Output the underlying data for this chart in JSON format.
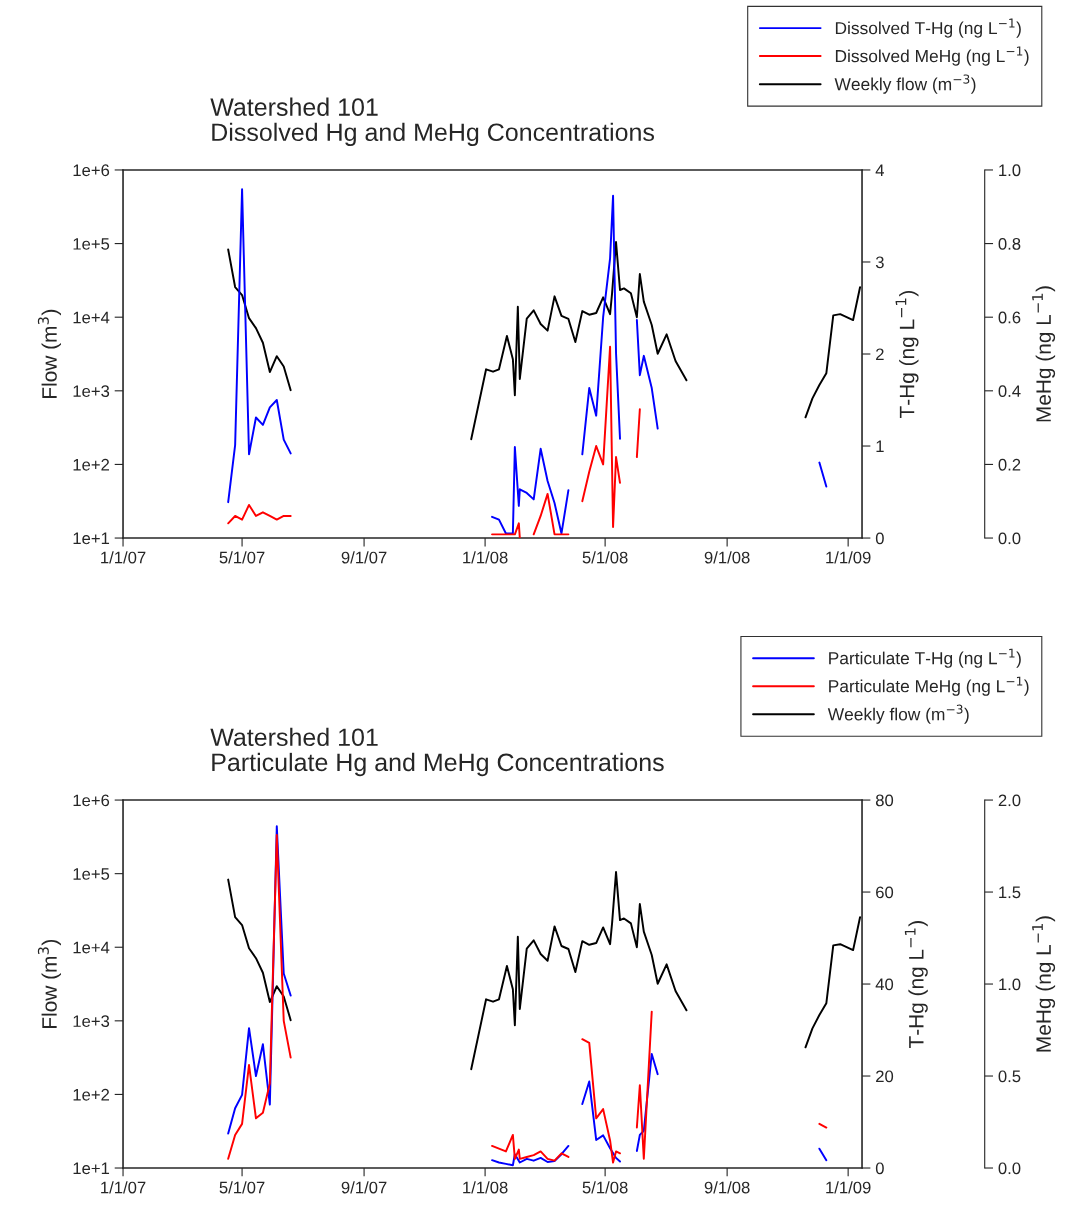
{
  "chart_data": [
    {
      "type": "line",
      "title": "Watershed 101\nDissolved Hg and MeHg Concentrations",
      "ylabel": "Flow (m$^{3}$)",
      "y2label": "T-Hg (ng L$^{−1}$)",
      "y3label": "MeHg (ng L$^{−1}$)",
      "log": "y",
      "grid": false,
      "legend": "top right",
      "marker": "none",
      "line_style": "solid",
      "xlim": [
        "2007-01-01",
        "2009-01-15"
      ],
      "xticks": [
        {
          "value": "2007-01-01",
          "label": "1/1/07"
        },
        {
          "value": "2007-05-01",
          "label": "5/1/07"
        },
        {
          "value": "2007-09-01",
          "label": "9/1/07"
        },
        {
          "value": "2008-01-01",
          "label": "1/1/08"
        },
        {
          "value": "2008-05-01",
          "label": "5/1/08"
        },
        {
          "value": "2008-09-01",
          "label": "9/1/08"
        },
        {
          "value": "2009-01-01",
          "label": "1/1/09"
        }
      ],
      "ylim": [
        10,
        1000000
      ],
      "yticks": [
        {
          "value": 10,
          "label": "1e+1"
        },
        {
          "value": 100,
          "label": "1e+2"
        },
        {
          "value": 1000,
          "label": "1e+3"
        },
        {
          "value": 10000,
          "label": "1e+4"
        },
        {
          "value": 100000,
          "label": "1e+5"
        },
        {
          "value": 1000000,
          "label": "1e+6"
        }
      ],
      "y2lim": [
        0,
        4
      ],
      "y2ticks": [
        0,
        1,
        2,
        3,
        4
      ],
      "y3lim": [
        0,
        1.0
      ],
      "y3ticks": [
        {
          "value": 0,
          "label": "0.0"
        },
        {
          "value": 0.2,
          "label": "0.2"
        },
        {
          "value": 0.4,
          "label": "0.4"
        },
        {
          "value": 0.6,
          "label": "0.6"
        },
        {
          "value": 0.8,
          "label": "0.8"
        },
        {
          "value": 1.0,
          "label": "1.0"
        }
      ],
      "series": [
        {
          "name": "Dissolved T-Hg (ng L$^{−1}$)",
          "color": "#0000ff",
          "axis": "y2",
          "x": [
            "2007-04-17",
            "2007-04-24",
            "2007-05-01",
            "2007-05-08",
            "2007-05-15",
            "2007-05-22",
            "2007-05-29",
            "2007-06-05",
            "2007-06-12",
            "2007-06-19",
            "2007-09-01",
            "2008-01-08",
            "2008-01-15",
            "2008-01-22",
            "2008-01-29",
            "2008-01-31",
            "2008-02-04",
            "2008-02-05",
            "2008-02-12",
            "2008-02-19",
            "2008-02-26",
            "2008-03-04",
            "2008-03-11",
            "2008-03-18",
            "2008-03-25",
            "2008-04-01",
            "2008-04-08",
            "2008-04-15",
            "2008-04-22",
            "2008-04-29",
            "2008-05-06",
            "2008-05-09",
            "2008-05-12",
            "2008-05-16",
            "2008-05-25",
            "2008-06-02",
            "2008-06-05",
            "2008-06-09",
            "2008-06-17",
            "2008-06-23",
            "2008-09-15",
            "2008-12-03",
            "2008-12-10"
          ],
          "values": [
            0.39,
            1.01,
            3.79,
            0.91,
            1.31,
            1.23,
            1.42,
            1.5,
            1.07,
            0.92,
            null,
            0.23,
            0.2,
            0.05,
            0.05,
            0.99,
            0.35,
            0.53,
            0.49,
            0.42,
            0.97,
            0.62,
            0.38,
            0.05,
            0.52,
            null,
            0.91,
            1.63,
            1.33,
            2.4,
            3.04,
            3.72,
            2.01,
            1.08,
            null,
            2.37,
            1.77,
            1.98,
            1.63,
            1.19,
            null,
            0.82,
            0.56
          ]
        },
        {
          "name": "Dissolved MeHg (ng L$^{−1}$)",
          "color": "#ff0000",
          "axis": "y3",
          "x": [
            "2007-04-17",
            "2007-04-24",
            "2007-05-01",
            "2007-05-08",
            "2007-05-15",
            "2007-05-22",
            "2007-05-29",
            "2007-06-05",
            "2007-06-12",
            "2007-06-19",
            "2007-09-01",
            "2008-01-08",
            "2008-01-15",
            "2008-01-22",
            "2008-01-29",
            "2008-01-31",
            "2008-02-04",
            "2008-02-05",
            "2008-02-12",
            "2008-02-19",
            "2008-02-26",
            "2008-03-04",
            "2008-03-11",
            "2008-03-18",
            "2008-03-25",
            "2008-04-01",
            "2008-04-08",
            "2008-04-15",
            "2008-04-22",
            "2008-04-29",
            "2008-05-06",
            "2008-05-09",
            "2008-05-12",
            "2008-05-16",
            "2008-05-25",
            "2008-06-02",
            "2008-06-05"
          ],
          "values": [
            0.04,
            0.06,
            0.05,
            0.09,
            0.06,
            0.07,
            0.06,
            0.05,
            0.06,
            0.06,
            null,
            0.01,
            0.01,
            0.01,
            0.01,
            0.01,
            0.04,
            0.0,
            null,
            0.01,
            0.06,
            0.12,
            0.01,
            0.01,
            0.01,
            null,
            0.1,
            0.18,
            0.25,
            0.2,
            0.52,
            0.03,
            0.22,
            0.15,
            null,
            0.22,
            0.35
          ]
        },
        {
          "name": "Weekly flow (m$^{−3}$)",
          "color": "#000000",
          "axis": "y",
          "x": [
            "2007-04-17",
            "2007-04-24",
            "2007-05-01",
            "2007-05-08",
            "2007-05-15",
            "2007-05-22",
            "2007-05-29",
            "2007-06-05",
            "2007-06-12",
            "2007-06-19",
            "2007-09-01",
            "2007-12-18",
            "2008-01-02",
            "2008-01-09",
            "2008-01-15",
            "2008-01-23",
            "2008-01-29",
            "2008-01-31",
            "2008-02-03",
            "2008-02-05",
            "2008-02-12",
            "2008-02-19",
            "2008-02-26",
            "2008-03-04",
            "2008-03-11",
            "2008-03-18",
            "2008-03-25",
            "2008-04-01",
            "2008-04-08",
            "2008-04-15",
            "2008-04-22",
            "2008-04-29",
            "2008-05-06",
            "2008-05-08",
            "2008-05-12",
            "2008-05-16",
            "2008-05-20",
            "2008-05-27",
            "2008-06-02",
            "2008-06-05",
            "2008-06-09",
            "2008-06-17",
            "2008-06-23",
            "2008-07-02",
            "2008-07-11",
            "2008-07-22",
            "2008-09-15",
            "2008-11-19",
            "2008-11-26",
            "2008-12-03",
            "2008-12-10",
            "2008-12-17",
            "2008-12-24",
            "2009-01-06",
            "2009-01-13"
          ],
          "values": [
            83000,
            25700,
            20000,
            9700,
            7100,
            4500,
            1800,
            2950,
            2140,
            1020,
            null,
            220,
            1960,
            1820,
            1960,
            5560,
            2690,
            870,
            13900,
            1450,
            9550,
            12400,
            8100,
            6560,
            19200,
            10400,
            9460,
            4600,
            12100,
            10800,
            11400,
            18600,
            11000,
            21100,
            105000,
            23400,
            24600,
            21100,
            10000,
            38600,
            16300,
            7830,
            3190,
            5860,
            2540,
            1390,
            null,
            436,
            790,
            1200,
            1730,
            10600,
            11000,
            9150,
            25500
          ]
        }
      ]
    },
    {
      "type": "line",
      "title": "Watershed 101\nParticulate Hg and MeHg Concentrations",
      "ylabel": "Flow (m$^{3}$)",
      "y2label": "T-Hg (ng L$^{−1}$)",
      "y3label": "MeHg (ng L$^{−1}$)",
      "log": "y",
      "grid": false,
      "legend": "top right",
      "marker": "none",
      "line_style": "solid",
      "xlim": [
        "2007-01-01",
        "2009-01-15"
      ],
      "xticks": [
        {
          "value": "2007-01-01",
          "label": "1/1/07"
        },
        {
          "value": "2007-05-01",
          "label": "5/1/07"
        },
        {
          "value": "2007-09-01",
          "label": "9/1/07"
        },
        {
          "value": "2008-01-01",
          "label": "1/1/08"
        },
        {
          "value": "2008-05-01",
          "label": "5/1/08"
        },
        {
          "value": "2008-09-01",
          "label": "9/1/08"
        },
        {
          "value": "2009-01-01",
          "label": "1/1/09"
        }
      ],
      "ylim": [
        10,
        1000000
      ],
      "yticks": [
        {
          "value": 10,
          "label": "1e+1"
        },
        {
          "value": 100,
          "label": "1e+2"
        },
        {
          "value": 1000,
          "label": "1e+3"
        },
        {
          "value": 10000,
          "label": "1e+4"
        },
        {
          "value": 100000,
          "label": "1e+5"
        },
        {
          "value": 1000000,
          "label": "1e+6"
        }
      ],
      "y2lim": [
        0,
        80
      ],
      "y2ticks": [
        0,
        20,
        40,
        60,
        80
      ],
      "y3lim": [
        0,
        2.0
      ],
      "y3ticks": [
        {
          "value": 0,
          "label": "0.0"
        },
        {
          "value": 0.5,
          "label": "0.5"
        },
        {
          "value": 1.0,
          "label": "1.0"
        },
        {
          "value": 1.5,
          "label": "1.5"
        },
        {
          "value": 2.0,
          "label": "2.0"
        }
      ],
      "series": [
        {
          "name": "Particulate T-Hg (ng L$^{−1}$)",
          "color": "#0000ff",
          "axis": "y2",
          "x": [
            "2007-04-17",
            "2007-04-24",
            "2007-05-01",
            "2007-05-08",
            "2007-05-15",
            "2007-05-22",
            "2007-05-29",
            "2007-06-05",
            "2007-06-12",
            "2007-06-19",
            "2007-09-01",
            "2008-01-08",
            "2008-01-15",
            "2008-01-22",
            "2008-01-29",
            "2008-01-31",
            "2008-02-05",
            "2008-02-12",
            "2008-02-19",
            "2008-02-26",
            "2008-03-04",
            "2008-03-11",
            "2008-03-18",
            "2008-03-25",
            "2008-04-01",
            "2008-04-08",
            "2008-04-15",
            "2008-04-22",
            "2008-04-29",
            "2008-05-06",
            "2008-05-12",
            "2008-05-16",
            "2008-05-25",
            "2008-06-02",
            "2008-06-05",
            "2008-06-09",
            "2008-06-17",
            "2008-06-23",
            "2008-09-15",
            "2008-12-03",
            "2008-12-10"
          ],
          "values": [
            7.5,
            13.0,
            15.9,
            30.4,
            20.0,
            26.9,
            13.8,
            74.3,
            42.3,
            37.5,
            null,
            1.7,
            1.2,
            0.9,
            0.6,
            3.0,
            1.2,
            2.0,
            1.6,
            2.2,
            1.3,
            1.5,
            3.0,
            4.8,
            null,
            13.9,
            18.8,
            6.1,
            7.1,
            4.3,
            2.2,
            1.4,
            null,
            3.7,
            7.2,
            8.1,
            24.8,
            20.4,
            null,
            4.2,
            1.7
          ]
        },
        {
          "name": "Particulate MeHg (ng L$^{−1}$)",
          "color": "#ff0000",
          "axis": "y3",
          "x": [
            "2007-04-17",
            "2007-04-24",
            "2007-05-01",
            "2007-05-08",
            "2007-05-15",
            "2007-05-22",
            "2007-05-29",
            "2007-06-05",
            "2007-06-12",
            "2007-06-19",
            "2007-09-01",
            "2008-01-08",
            "2008-01-22",
            "2008-01-29",
            "2008-01-31",
            "2008-02-04",
            "2008-02-05",
            "2008-02-12",
            "2008-02-19",
            "2008-02-26",
            "2008-03-04",
            "2008-03-11",
            "2008-03-18",
            "2008-03-25",
            "2008-04-01",
            "2008-04-08",
            "2008-04-15",
            "2008-04-22",
            "2008-04-29",
            "2008-05-06",
            "2008-05-09",
            "2008-05-12",
            "2008-05-16",
            "2008-05-25",
            "2008-06-02",
            "2008-06-05",
            "2008-06-09",
            "2008-06-17",
            "2008-09-15",
            "2008-12-03",
            "2008-12-10"
          ],
          "values": [
            0.05,
            0.18,
            0.24,
            0.56,
            0.27,
            0.3,
            0.46,
            1.81,
            0.8,
            0.6,
            null,
            0.12,
            0.09,
            0.18,
            0.05,
            0.1,
            0.05,
            0.06,
            0.07,
            0.09,
            0.05,
            0.04,
            0.08,
            0.06,
            null,
            0.7,
            0.68,
            0.27,
            0.32,
            0.15,
            0.03,
            0.09,
            0.08,
            null,
            0.22,
            0.45,
            0.05,
            0.85,
            null,
            0.24,
            0.22
          ]
        },
        {
          "name": "Weekly flow (m$^{−3}$)",
          "color": "#000000",
          "axis": "y",
          "x": [
            "2007-04-17",
            "2007-04-24",
            "2007-05-01",
            "2007-05-08",
            "2007-05-15",
            "2007-05-22",
            "2007-05-29",
            "2007-06-05",
            "2007-06-12",
            "2007-06-19",
            "2007-09-01",
            "2007-12-18",
            "2008-01-02",
            "2008-01-09",
            "2008-01-15",
            "2008-01-23",
            "2008-01-29",
            "2008-01-31",
            "2008-02-03",
            "2008-02-05",
            "2008-02-12",
            "2008-02-19",
            "2008-02-26",
            "2008-03-04",
            "2008-03-11",
            "2008-03-18",
            "2008-03-25",
            "2008-04-01",
            "2008-04-08",
            "2008-04-15",
            "2008-04-22",
            "2008-04-29",
            "2008-05-06",
            "2008-05-08",
            "2008-05-12",
            "2008-05-16",
            "2008-05-20",
            "2008-05-27",
            "2008-06-02",
            "2008-06-05",
            "2008-06-09",
            "2008-06-17",
            "2008-06-23",
            "2008-07-02",
            "2008-07-11",
            "2008-07-22",
            "2008-09-15",
            "2008-11-19",
            "2008-11-26",
            "2008-12-03",
            "2008-12-10",
            "2008-12-17",
            "2008-12-24",
            "2009-01-06",
            "2009-01-13"
          ],
          "values": [
            83000,
            25700,
            20000,
            9700,
            7100,
            4500,
            1800,
            2950,
            2140,
            1020,
            null,
            220,
            1960,
            1820,
            1960,
            5560,
            2690,
            870,
            13900,
            1450,
            9550,
            12400,
            8100,
            6560,
            19200,
            10400,
            9460,
            4600,
            12100,
            10800,
            11400,
            18600,
            11000,
            21100,
            105000,
            23400,
            24600,
            21100,
            10000,
            38600,
            16300,
            7830,
            3190,
            5860,
            2540,
            1390,
            null,
            436,
            790,
            1200,
            1730,
            10600,
            11000,
            9150,
            25500
          ]
        }
      ]
    }
  ]
}
